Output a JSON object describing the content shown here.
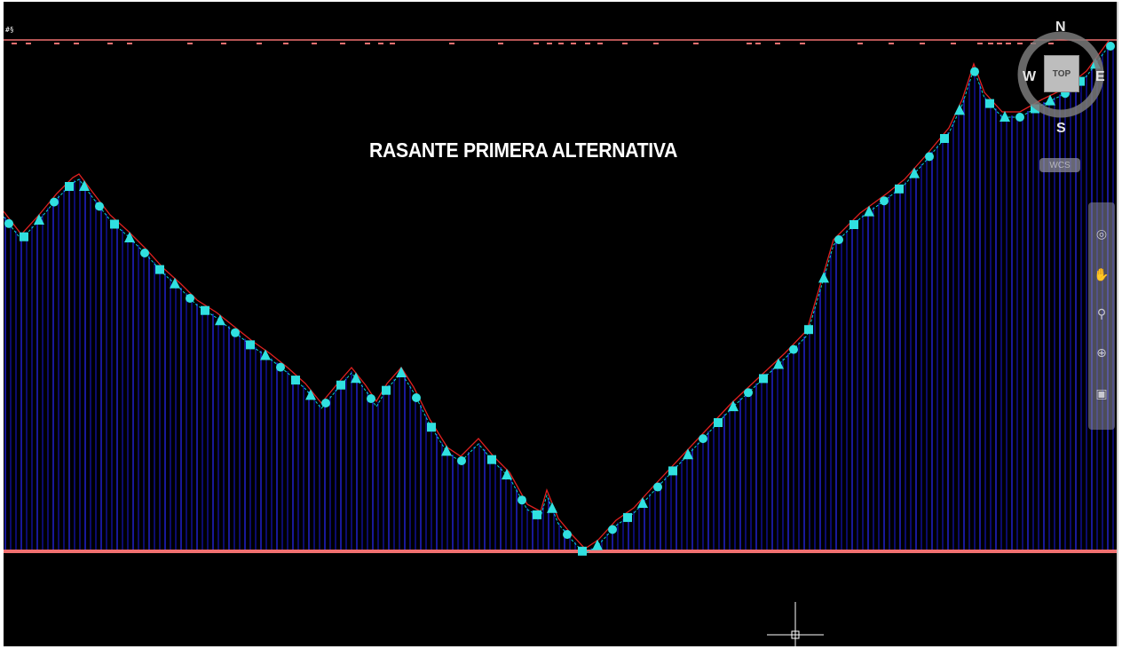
{
  "drawing": {
    "title": "RASANTE PRIMERA ALTERNATIVA",
    "corner_glyph": "#§"
  },
  "viewcube": {
    "north": "N",
    "south": "S",
    "east": "E",
    "west": "W",
    "face": "TOP",
    "ucs_label": "WCS"
  },
  "navigation_bar": {
    "tools": [
      "steering-wheel-icon",
      "pan-icon",
      "zoom-icon",
      "orbit-icon",
      "showmotion-icon"
    ]
  },
  "colors": {
    "background": "#000000",
    "profile_line": "#e02020",
    "grade_line": "#00e0e0",
    "station_lines": "#1a1ad0",
    "datum_line": "#f07070",
    "marker": "#30e0e0"
  }
}
